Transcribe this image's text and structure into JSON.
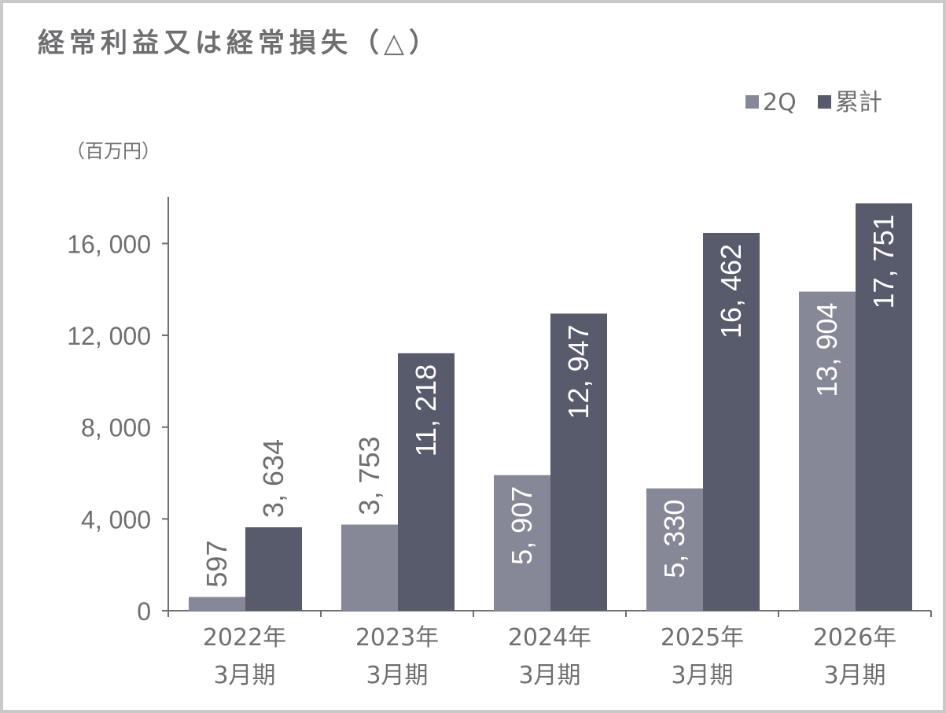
{
  "chart_data": {
    "type": "bar",
    "title": "経常利益又は経常損失（△）",
    "unit_label": "（百万円）",
    "categories": [
      [
        "2022年",
        "3月期"
      ],
      [
        "2023年",
        "3月期"
      ],
      [
        "2024年",
        "3月期"
      ],
      [
        "2025年",
        "3月期"
      ],
      [
        "2026年",
        "3月期"
      ]
    ],
    "series": [
      {
        "name": "2Q",
        "color": "#878897",
        "values": [
          597,
          3753,
          5907,
          5330,
          13904
        ],
        "labels": [
          "597",
          "3, 753",
          "5, 907",
          "5, 330",
          "13, 904"
        ]
      },
      {
        "name": "累計",
        "color": "#585b6c",
        "values": [
          3634,
          11218,
          12947,
          16462,
          17751
        ],
        "labels": [
          "3, 634",
          "11, 218",
          "12, 947",
          "16, 462",
          "17, 751"
        ]
      }
    ],
    "yticks": [
      {
        "value": 0,
        "label": "0"
      },
      {
        "value": 4000,
        "label": "4, 000"
      },
      {
        "value": 8000,
        "label": "8, 000"
      },
      {
        "value": 12000,
        "label": "12, 000"
      },
      {
        "value": 16000,
        "label": "16, 000"
      }
    ],
    "ylim": [
      0,
      18000
    ],
    "legend_position": "top-right",
    "grid": false
  }
}
